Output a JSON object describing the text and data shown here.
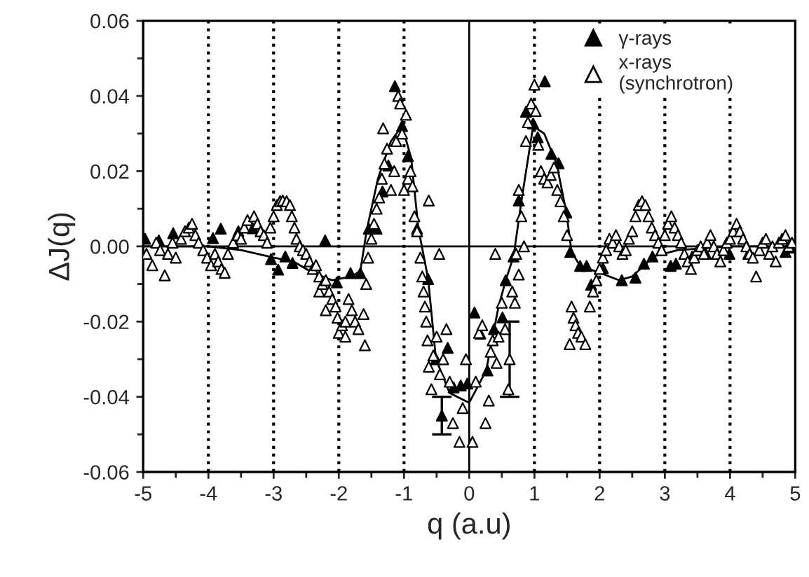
{
  "chart_data": {
    "type": "scatter",
    "xlabel": "q (a.u)",
    "ylabel": "ΔJ(q)",
    "xlim": [
      -5,
      5
    ],
    "xticks": [
      -5,
      -4,
      -3,
      -2,
      -1,
      0,
      1,
      2,
      3,
      4,
      5
    ],
    "ylim": [
      -0.06,
      0.06
    ],
    "yticks": [
      {
        "value": -0.06,
        "label": "-0.06"
      },
      {
        "value": -0.04,
        "label": "-0.04"
      },
      {
        "value": -0.02,
        "label": "-0.02"
      },
      {
        "value": 0.0,
        "label": "0.00"
      },
      {
        "value": 0.02,
        "label": "0.02"
      },
      {
        "value": 0.04,
        "label": "0.04"
      },
      {
        "value": 0.06,
        "label": "0.06"
      }
    ],
    "legend": "top right",
    "ref_lines": [
      {
        "axis": "y",
        "value": 0,
        "color": "#000000",
        "line_style": "solid"
      },
      {
        "axis": "x",
        "value": 0,
        "color": "#000000",
        "line_style": "solid"
      },
      {
        "axis": "x",
        "value": -4,
        "color": "#000000",
        "line_style": "dotted"
      },
      {
        "axis": "x",
        "value": -3,
        "color": "#000000",
        "line_style": "dotted"
      },
      {
        "axis": "x",
        "value": -2,
        "color": "#000000",
        "line_style": "dotted"
      },
      {
        "axis": "x",
        "value": -1,
        "color": "#000000",
        "line_style": "dotted"
      },
      {
        "axis": "x",
        "value": 1,
        "color": "#000000",
        "line_style": "dotted"
      },
      {
        "axis": "x",
        "value": 2,
        "color": "#000000",
        "line_style": "dotted"
      },
      {
        "axis": "x",
        "value": 3,
        "color": "#000000",
        "line_style": "dotted"
      },
      {
        "axis": "x",
        "value": 4,
        "color": "#000000",
        "line_style": "dotted"
      }
    ],
    "series": [
      {
        "name": "γ-rays",
        "marker": "triangle",
        "color": "#000000",
        "x": [
          -4.97,
          -4.76,
          -4.54,
          -3.93,
          -3.81,
          -3.54,
          -3.32,
          -3.04,
          -2.93,
          -2.82,
          -2.71,
          -2.21,
          -2.03,
          -1.82,
          -1.67,
          -1.54,
          -1.42,
          -1.33,
          -1.24,
          -1.14,
          -1.03,
          -0.94,
          -0.8,
          -0.63,
          -0.51,
          -0.33,
          -0.24,
          -0.13,
          -0.03,
          0.08,
          0.17,
          0.28,
          0.38,
          0.51,
          0.56,
          0.68,
          0.76,
          0.87,
          0.98,
          1.05,
          1.16,
          1.26,
          1.37,
          1.49,
          1.55,
          1.7,
          1.8,
          1.87,
          2.05,
          2.34,
          2.55,
          2.68,
          2.81,
          2.95,
          3.09,
          3.17,
          3.42,
          3.63,
          3.99,
          4.28,
          4.85,
          4.99
        ],
        "values": [
          0.002,
          0.0016,
          0.0035,
          0.0022,
          0.0047,
          0.004,
          0.0048,
          -0.0034,
          -0.0062,
          -0.0027,
          -0.0044,
          0.0016,
          -0.0096,
          -0.0071,
          -0.0071,
          0.0047,
          0.0047,
          0.0146,
          0.0215,
          0.0426,
          0.032,
          0.024,
          0.0047,
          -0.0087,
          -0.03,
          -0.027,
          -0.0375,
          -0.037,
          -0.0365,
          -0.0176,
          -0.0232,
          -0.033,
          -0.022,
          -0.0189,
          -0.009,
          -0.0027,
          0.0122,
          0.0358,
          0.0327,
          0.029,
          0.0439,
          0.0246,
          0.0221,
          0.009,
          -0.0015,
          -0.0052,
          -0.0052,
          -0.0102,
          -0.0058,
          -0.009,
          -0.0083,
          -0.0046,
          -0.0027,
          -0.0009,
          -0.0052,
          -0.0046,
          -0.0027,
          -0.002,
          -0.002,
          -0.002,
          -0.0015,
          -0.0003
        ]
      },
      {
        "name": "x-rays\n(synchrotron)",
        "marker": "triangle",
        "color": "#ffffff",
        "x": [
          -4.95,
          -4.86,
          -4.8,
          -4.74,
          -4.67,
          -4.62,
          -4.55,
          -4.5,
          -4.42,
          -4.36,
          -4.3,
          -4.25,
          -4.2,
          -4.15,
          -4.08,
          -4.02,
          -3.96,
          -3.9,
          -3.85,
          -3.8,
          -3.75,
          -3.7,
          -3.62,
          -3.55,
          -3.5,
          -3.45,
          -3.4,
          -3.3,
          -3.25,
          -3.2,
          -3.15,
          -3.1,
          -3.05,
          -3.0,
          -2.95,
          -2.9,
          -2.86,
          -2.8,
          -2.75,
          -2.72,
          -2.68,
          -2.65,
          -2.6,
          -2.55,
          -2.5,
          -2.45,
          -2.4,
          -2.35,
          -2.3,
          -2.3,
          -2.25,
          -2.2,
          -2.2,
          -2.15,
          -2.1,
          -2.05,
          -2.02,
          -2.0,
          -1.95,
          -1.9,
          -1.9,
          -1.85,
          -1.8,
          -1.75,
          -1.7,
          -1.6,
          -1.62,
          -1.58,
          -1.55,
          -1.5,
          -1.46,
          -1.42,
          -1.38,
          -1.34,
          -1.32,
          -1.3,
          -1.26,
          -1.2,
          -1.15,
          -1.12,
          -1.09,
          -1.06,
          -1.03,
          -1.0,
          -0.97,
          -0.94,
          -0.9,
          -0.87,
          -0.84,
          -0.8,
          -0.62,
          -0.75,
          -0.72,
          -0.7,
          -0.68,
          -0.66,
          -0.64,
          -0.62,
          -0.58,
          -0.55,
          -0.5,
          -0.46,
          -0.45,
          -0.4,
          -0.35,
          -0.3,
          -0.25,
          -0.15,
          -0.1,
          -0.05,
          0.05,
          0.1,
          0.15,
          0.2,
          0.25,
          0.3,
          0.33,
          0.36,
          0.4,
          0.42,
          0.45,
          0.5,
          0.55,
          0.6,
          0.66,
          0.7,
          0.72,
          0.76,
          0.76,
          0.8,
          0.84,
          0.87,
          0.9,
          0.95,
          1.0,
          1.02,
          1.06,
          1.1,
          1.15,
          1.2,
          1.25,
          1.3,
          1.35,
          1.4,
          1.45,
          1.5,
          1.54,
          1.57,
          1.6,
          1.63,
          1.67,
          1.72,
          1.78,
          1.85,
          1.9,
          1.95,
          2.0,
          2.05,
          2.1,
          2.15,
          2.2,
          2.25,
          2.3,
          2.35,
          2.4,
          2.45,
          2.5,
          2.55,
          2.6,
          2.65,
          2.7,
          2.75,
          2.8,
          2.85,
          2.9,
          2.95,
          3.0,
          3.05,
          3.1,
          3.15,
          3.2,
          3.25,
          3.3,
          3.35,
          3.4,
          3.45,
          3.5,
          3.55,
          3.6,
          3.65,
          3.7,
          3.75,
          3.8,
          3.85,
          3.9,
          3.95,
          4.0,
          4.05,
          4.1,
          4.15,
          4.2,
          4.25,
          4.3,
          4.35,
          4.4,
          4.45,
          4.5,
          4.55,
          4.6,
          4.65,
          4.7,
          4.75,
          4.8,
          4.85,
          4.9,
          4.95
        ],
        "values": [
          -0.002,
          -0.005,
          0.001,
          -0.001,
          -0.0077,
          -0.002,
          0.001,
          -0.003,
          0.002,
          0.004,
          0.005,
          0.006,
          0.003,
          0.001,
          -0.001,
          -0.003,
          -0.005,
          -0.002,
          -0.004,
          -0.006,
          -0.007,
          -0.002,
          0.001,
          0.003,
          0.002,
          0.005,
          0.007,
          0.008,
          0.006,
          0.004,
          0.003,
          0.001,
          0.005,
          0.008,
          0.011,
          0.012,
          0.0122,
          0.012,
          0.011,
          0.008,
          0.005,
          0.002,
          0.0,
          -0.001,
          -0.002,
          -0.004,
          -0.006,
          -0.005,
          -0.008,
          -0.012,
          -0.01,
          -0.009,
          -0.017,
          -0.012,
          -0.014,
          -0.016,
          -0.019,
          -0.023,
          -0.021,
          -0.02,
          -0.024,
          -0.014,
          -0.017,
          -0.02,
          -0.022,
          -0.0263,
          -0.018,
          -0.01,
          -0.003,
          0.002,
          0.006,
          0.01,
          0.013,
          0.018,
          0.0314,
          0.022,
          0.026,
          0.015,
          0.02,
          0.028,
          0.04,
          0.038,
          0.03,
          0.015,
          0.035,
          0.018,
          0.02,
          0.016,
          0.008,
          0.004,
          0.0122,
          -0.003,
          -0.008,
          -0.012,
          -0.016,
          -0.02,
          -0.025,
          -0.032,
          -0.038,
          -0.029,
          -0.024,
          -0.002,
          -0.034,
          -0.03,
          -0.022,
          -0.036,
          -0.047,
          -0.052,
          -0.043,
          -0.03,
          -0.052,
          -0.036,
          -0.023,
          -0.021,
          -0.047,
          -0.041,
          -0.028,
          -0.025,
          -0.002,
          -0.031,
          -0.024,
          -0.015,
          -0.022,
          -0.038,
          -0.012,
          -0.015,
          -0.002,
          -0.0075,
          0.015,
          0.008,
          0.0,
          0.028,
          0.033,
          0.038,
          0.043,
          0.036,
          0.027,
          0.02,
          0.018,
          0.017,
          0.019,
          0.021,
          0.015,
          0.012,
          0.008,
          0.003,
          -0.026,
          -0.016,
          -0.019,
          -0.021,
          -0.023,
          -0.024,
          -0.026,
          -0.016,
          -0.012,
          -0.009,
          -0.006,
          -0.003,
          -0.001,
          0.002,
          0.001,
          0.003,
          0.0,
          -0.002,
          -0.001,
          0.002,
          0.004,
          0.008,
          0.011,
          0.012,
          0.011,
          0.008,
          0.005,
          0.003,
          0.001,
          -0.001,
          0.003,
          0.006,
          0.008,
          0.005,
          0.003,
          0.001,
          -0.002,
          -0.004,
          -0.006,
          -0.003,
          -0.001,
          0.0,
          -0.002,
          0.001,
          0.003,
          0.0,
          -0.002,
          -0.004,
          -0.001,
          0.001,
          0.002,
          0.004,
          0.006,
          0.004,
          0.002,
          0.0,
          -0.002,
          -0.003,
          -0.008,
          -0.001,
          0.001,
          0.002,
          -0.002,
          0.0,
          -0.004,
          0.001,
          0.002,
          0.003,
          0.0,
          0.001
        ]
      },
      {
        "marker": "triangle",
        "colors": [
          "#000000",
          "#ffffff"
        ],
        "x": [
          -0.42,
          0.62
        ],
        "values": [
          -0.045,
          -0.03
        ],
        "errors": [
          0.005,
          0.01
        ]
      },
      {
        "type": "line",
        "marker": "none",
        "line_style": "solid",
        "color": "#000000",
        "x": [
          -5,
          -4,
          -3.5,
          -3,
          -2.7,
          -2.4,
          -2.1,
          -1.8,
          -1.67,
          -1.57,
          -1.4,
          -1.2,
          -1.03,
          -0.89,
          -0.78,
          -0.63,
          -0.51,
          -0.3,
          0,
          0.26,
          0.45,
          0.56,
          0.68,
          0.8,
          0.98,
          1.15,
          1.34,
          1.49,
          1.57,
          1.7,
          2.0,
          2.3,
          2.5,
          2.84,
          3.2,
          4,
          5
        ],
        "values": [
          0,
          0,
          -0.001,
          -0.003,
          -0.004,
          -0.007,
          -0.009,
          -0.008,
          -0.0065,
          0.0045,
          0.018,
          0.028,
          0.032,
          0.0235,
          0.0048,
          -0.0087,
          -0.03,
          -0.039,
          -0.0416,
          -0.033,
          -0.016,
          -0.009,
          -0.0027,
          0.012,
          0.032,
          0.03,
          0.022,
          0.009,
          -0.0015,
          -0.0052,
          -0.007,
          -0.009,
          -0.008,
          -0.0026,
          -0.001,
          0,
          0
        ]
      }
    ]
  }
}
